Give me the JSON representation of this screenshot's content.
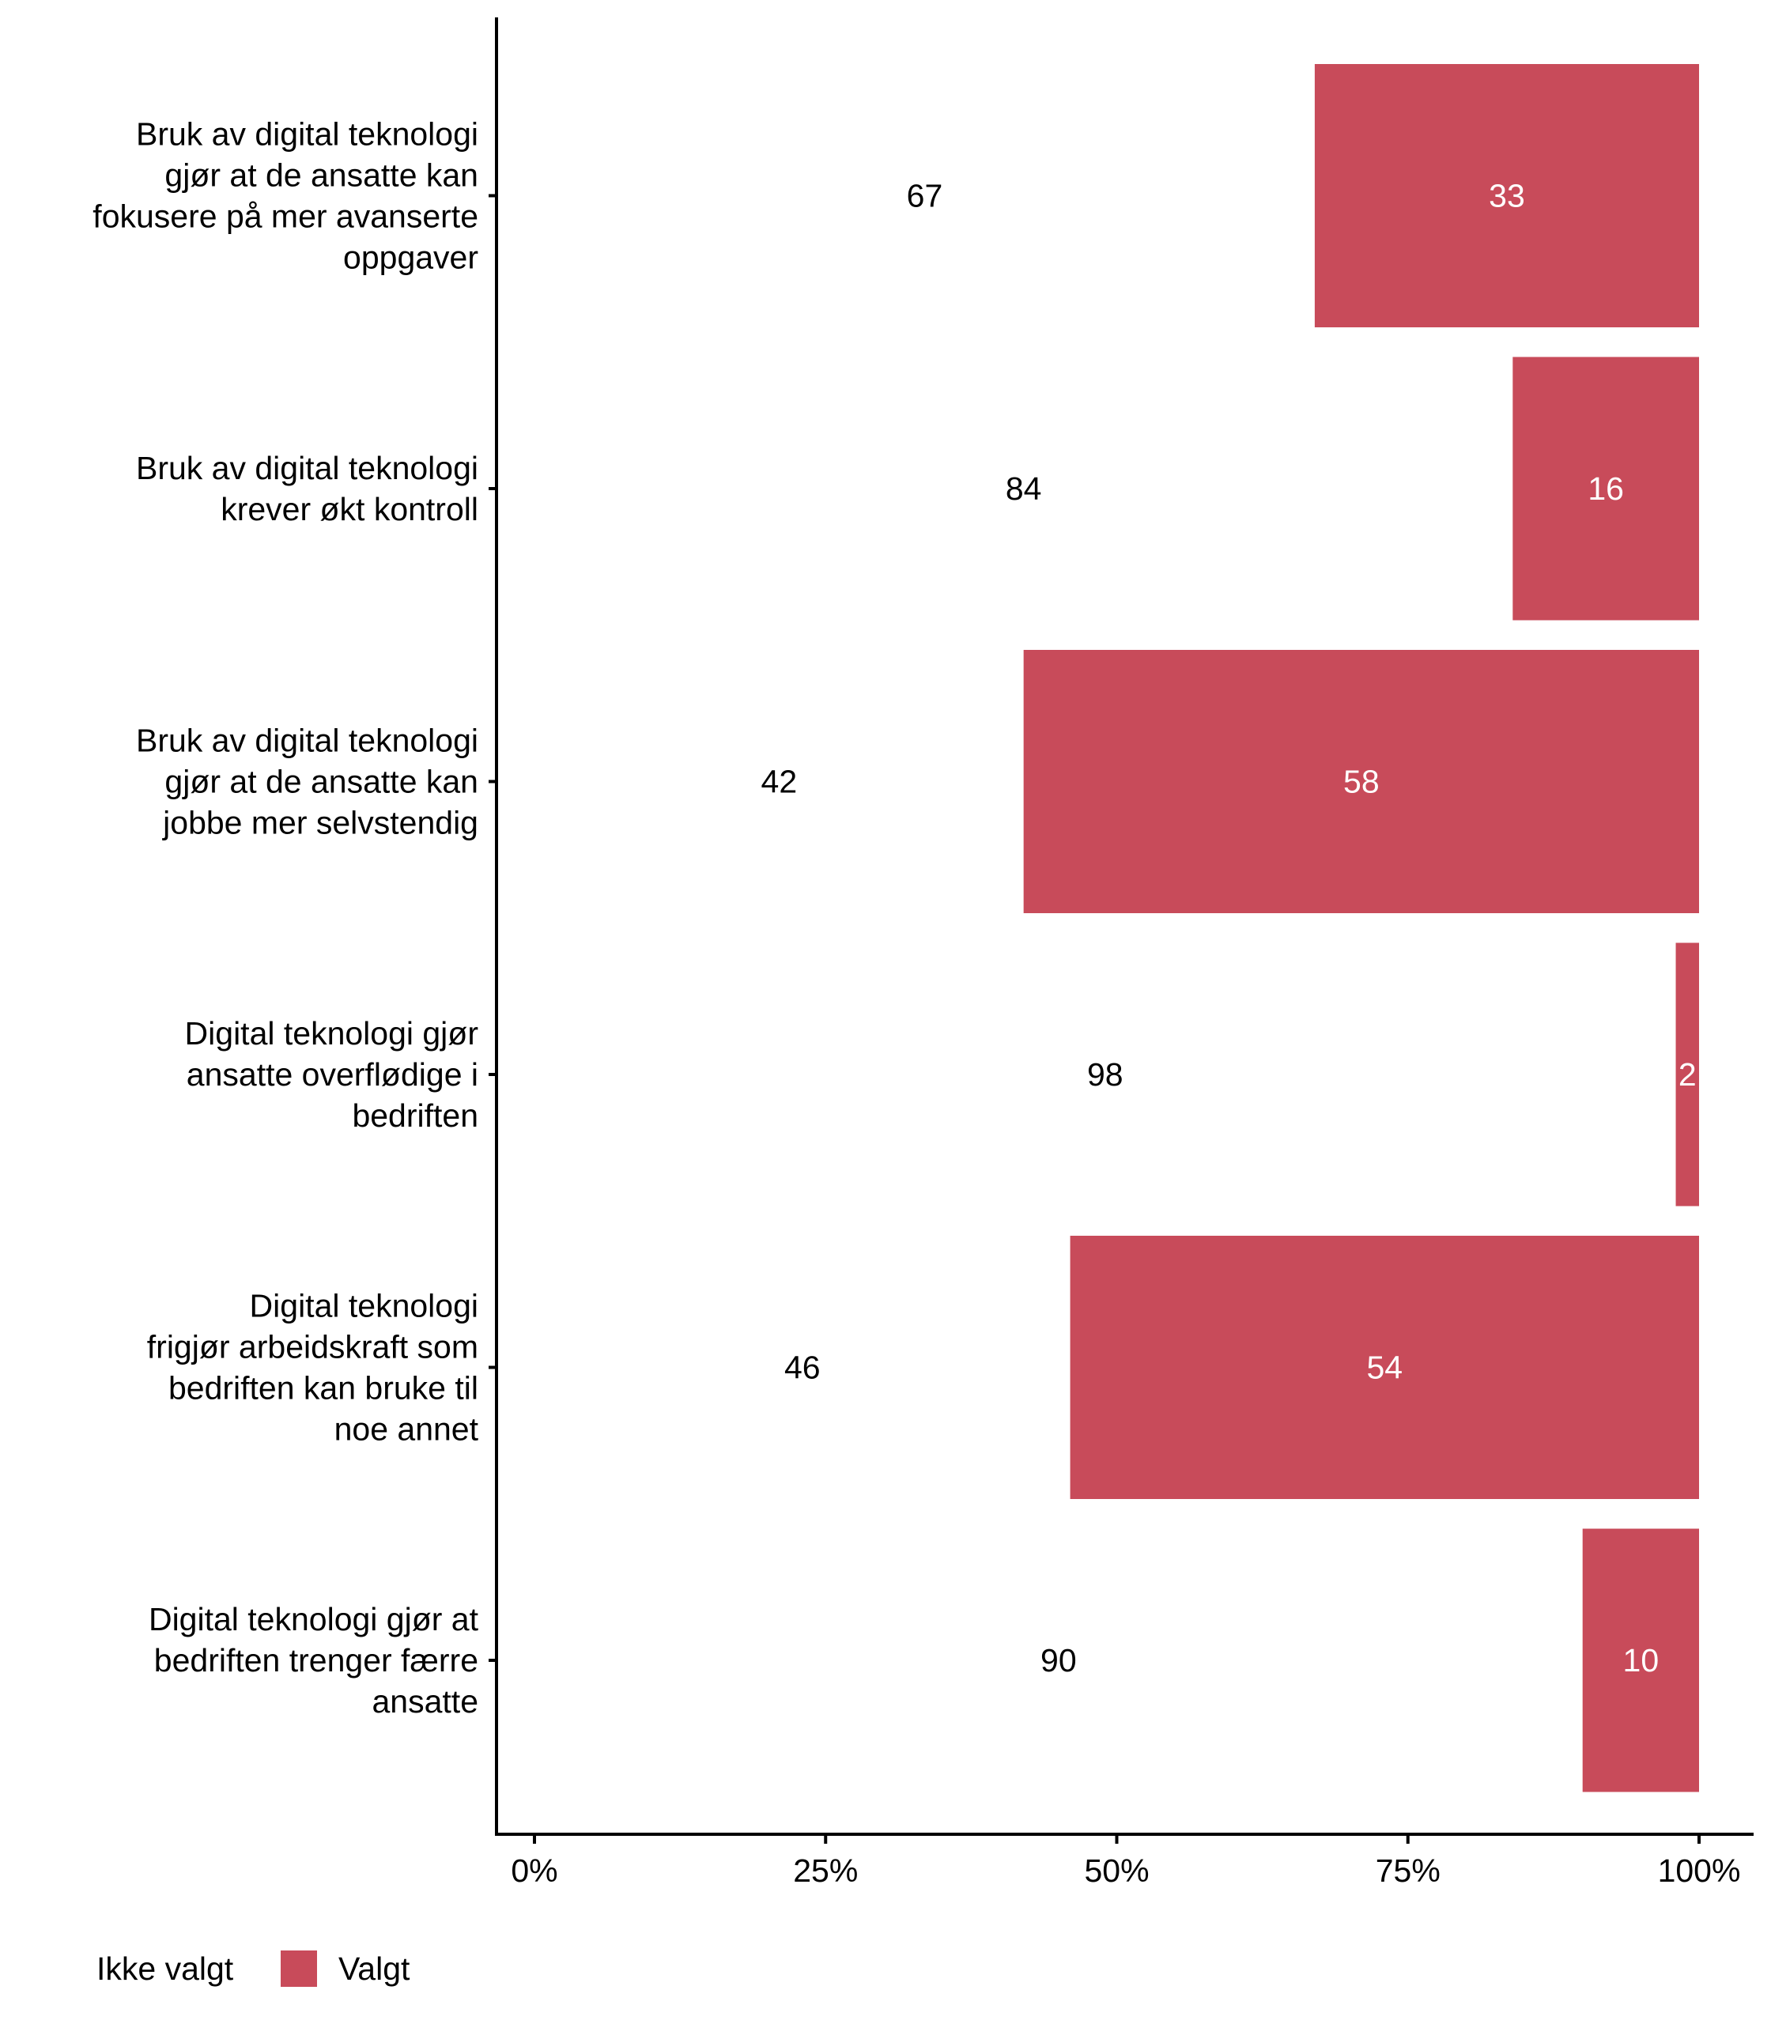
{
  "chart_data": {
    "type": "bar",
    "orientation": "horizontal",
    "stacked": true,
    "categories": [
      [
        "Bruk av digital teknologi",
        "gjør at de ansatte kan",
        "fokusere på mer avanserte",
        "oppgaver"
      ],
      [
        "Bruk av digital teknologi",
        "krever økt kontroll"
      ],
      [
        "Bruk av digital teknologi",
        "gjør at de ansatte kan",
        "jobbe mer selvstendig"
      ],
      [
        "Digital teknologi gjør",
        "ansatte overflødige i",
        "bedriften"
      ],
      [
        "Digital teknologi",
        "frigjør arbeidskraft som",
        "bedriften kan bruke til",
        "noe annet"
      ],
      [
        "Digital teknologi gjør at",
        "bedriften trenger færre",
        "ansatte"
      ]
    ],
    "series": [
      {
        "name": "Ikke valgt",
        "color": "#ffffff",
        "values": [
          67,
          84,
          42,
          98,
          46,
          90
        ],
        "labels": [
          "67",
          "84",
          "42",
          "98",
          "46",
          "90"
        ]
      },
      {
        "name": "Valgt",
        "color": "#c84b5a",
        "values": [
          33,
          16,
          58,
          2,
          54,
          10
        ],
        "labels": [
          "33",
          "16",
          "58",
          "2",
          "54",
          "10"
        ]
      }
    ],
    "x_ticks": [
      0,
      25,
      50,
      75,
      100
    ],
    "x_tick_labels": [
      "0%",
      "25%",
      "50%",
      "75%",
      "100%"
    ],
    "xlim": [
      0,
      100
    ],
    "grid": false,
    "legend": {
      "position": "bottom-left",
      "items": [
        "Ikke valgt",
        "Valgt"
      ]
    }
  }
}
